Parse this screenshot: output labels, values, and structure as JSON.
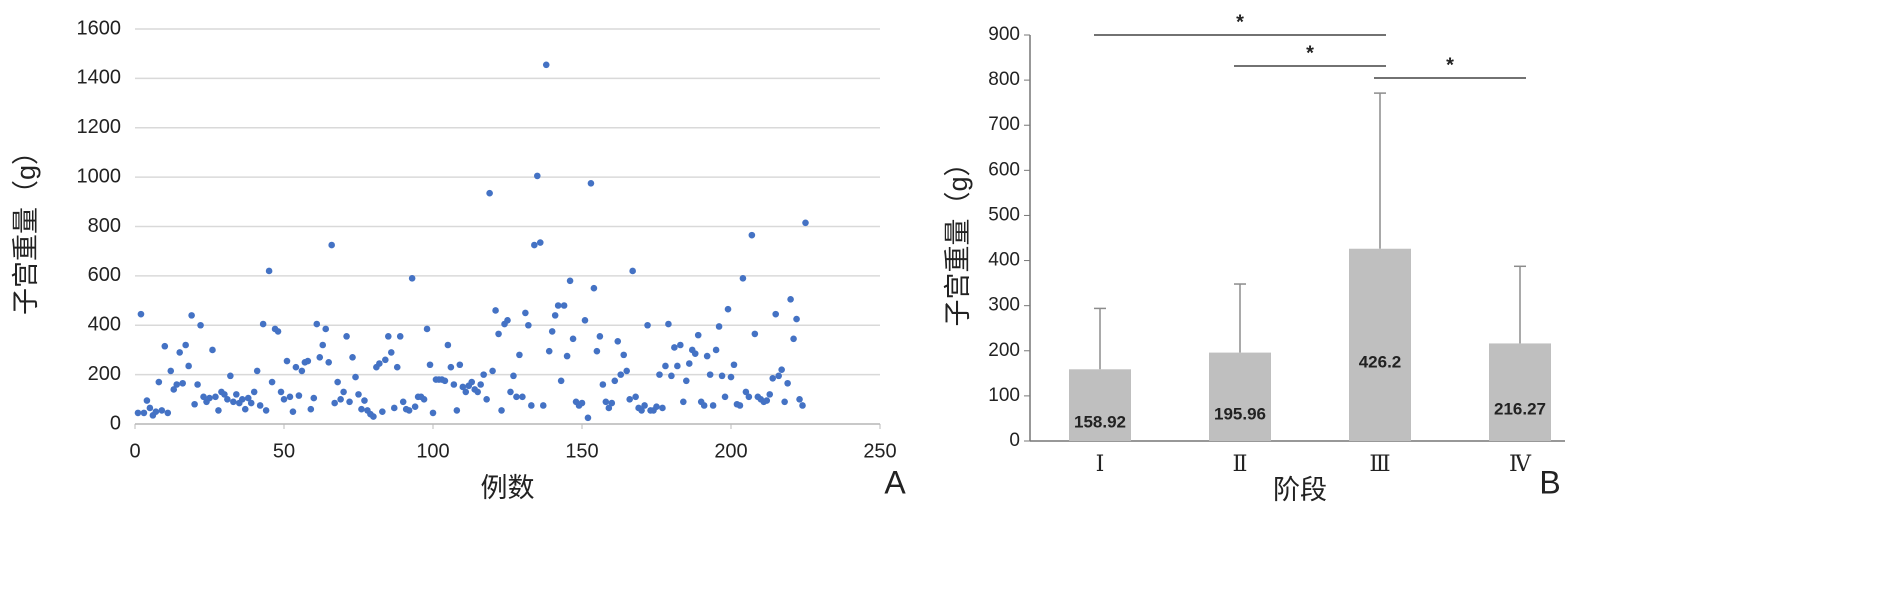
{
  "chart_data": [
    {
      "type": "scatter",
      "panel_label": "A",
      "xlabel": "例数",
      "ylabel": "子宫重量（g）",
      "color": "#4472c4",
      "xlim": [
        0,
        250
      ],
      "xticks": [
        0,
        50,
        100,
        150,
        200,
        250
      ],
      "ylim": [
        0,
        1600
      ],
      "yticks": [
        0,
        200,
        400,
        600,
        800,
        1000,
        1200,
        1400,
        1600
      ],
      "grid": true,
      "x": [
        1,
        2,
        3,
        4,
        5,
        6,
        7,
        8,
        9,
        10,
        11,
        12,
        13,
        14,
        15,
        16,
        17,
        18,
        19,
        20,
        21,
        22,
        23,
        24,
        25,
        26,
        27,
        28,
        29,
        30,
        31,
        32,
        33,
        34,
        35,
        36,
        37,
        38,
        39,
        40,
        41,
        42,
        43,
        44,
        45,
        46,
        47,
        48,
        49,
        50,
        51,
        52,
        53,
        54,
        55,
        56,
        57,
        58,
        59,
        60,
        61,
        62,
        63,
        64,
        65,
        66,
        67,
        68,
        69,
        70,
        71,
        72,
        73,
        74,
        75,
        76,
        77,
        78,
        79,
        80,
        81,
        82,
        83,
        84,
        85,
        86,
        87,
        88,
        89,
        90,
        91,
        92,
        93,
        94,
        95,
        96,
        97,
        98,
        99,
        100,
        101,
        102,
        103,
        104,
        105,
        106,
        107,
        108,
        109,
        110,
        111,
        112,
        113,
        114,
        115,
        116,
        117,
        118,
        119,
        120,
        121,
        122,
        123,
        124,
        125,
        126,
        127,
        128,
        129,
        130,
        131,
        132,
        133,
        134,
        135,
        136,
        137,
        138,
        139,
        140,
        141,
        142,
        143,
        144,
        145,
        146,
        147,
        148,
        149,
        150,
        151,
        152,
        153,
        154,
        155,
        156,
        157,
        158,
        159,
        160,
        161,
        162,
        163,
        164,
        165,
        166,
        167,
        168,
        169,
        170,
        171,
        172,
        173,
        174,
        175,
        176,
        177,
        178,
        179,
        180,
        181,
        182,
        183,
        184,
        185,
        186,
        187,
        188,
        189,
        190,
        191,
        192,
        193,
        194,
        195,
        196,
        197,
        198,
        199,
        200,
        201,
        202,
        203,
        204,
        205,
        206,
        207,
        208,
        209,
        210,
        211,
        212,
        213,
        214,
        215,
        216,
        217,
        218,
        219,
        220,
        221,
        222,
        223,
        224,
        225
      ],
      "values": [
        45,
        445,
        45,
        95,
        65,
        35,
        50,
        170,
        55,
        315,
        45,
        215,
        140,
        160,
        290,
        165,
        320,
        235,
        440,
        80,
        160,
        400,
        110,
        90,
        105,
        300,
        110,
        55,
        130,
        120,
        100,
        195,
        90,
        120,
        85,
        100,
        60,
        105,
        85,
        130,
        215,
        75,
        405,
        55,
        620,
        170,
        385,
        375,
        130,
        100,
        255,
        110,
        50,
        230,
        115,
        215,
        250,
        255,
        60,
        105,
        405,
        270,
        320,
        385,
        250,
        725,
        85,
        170,
        100,
        130,
        355,
        90,
        270,
        190,
        120,
        60,
        95,
        55,
        40,
        30,
        230,
        245,
        50,
        260,
        355,
        290,
        65,
        230,
        355,
        90,
        60,
        55,
        590,
        70,
        110,
        110,
        100,
        385,
        240,
        45,
        180,
        180,
        180,
        175,
        320,
        230,
        160,
        55,
        240,
        150,
        130,
        155,
        170,
        140,
        130,
        160,
        200,
        100,
        935,
        215,
        460,
        365,
        55,
        405,
        420,
        130,
        195,
        110,
        280,
        110,
        450,
        400,
        75,
        725,
        1005,
        735,
        75,
        1455,
        295,
        375,
        440,
        480,
        175,
        480,
        275,
        580,
        345,
        90,
        75,
        85,
        420,
        25,
        975,
        550,
        295,
        355,
        160,
        90,
        65,
        85,
        175,
        335,
        200,
        280,
        215,
        100,
        620,
        110,
        65,
        55,
        75,
        400,
        55,
        55,
        70,
        200,
        65,
        235,
        405,
        195,
        310,
        235,
        320,
        90,
        175,
        245,
        300,
        285,
        360,
        90,
        75,
        275,
        200,
        75,
        300,
        395,
        195,
        110,
        465,
        190,
        240,
        80,
        75,
        590,
        130,
        110,
        765,
        365,
        110,
        100,
        90,
        95,
        120,
        185,
        445,
        195,
        220,
        90,
        165,
        505,
        345,
        425,
        100,
        75,
        815
      ]
    },
    {
      "type": "bar",
      "panel_label": "B",
      "xlabel": "阶段",
      "ylabel": "子宫重量（g）",
      "color": "#bfbfbf",
      "error_color": "#8c8c8c",
      "categories": [
        "Ⅰ",
        "Ⅱ",
        "Ⅲ",
        "Ⅳ"
      ],
      "values": [
        158.92,
        195.96,
        426.2,
        216.27
      ],
      "errors": [
        135,
        152,
        345,
        171
      ],
      "ylim": [
        0,
        900
      ],
      "yticks": [
        0,
        100,
        200,
        300,
        400,
        500,
        600,
        700,
        800,
        900
      ],
      "comparisons": [
        {
          "pair": [
            0,
            2
          ],
          "label": "*"
        },
        {
          "pair": [
            1,
            2
          ],
          "label": "*"
        },
        {
          "pair": [
            2,
            3
          ],
          "label": "*"
        }
      ]
    }
  ]
}
